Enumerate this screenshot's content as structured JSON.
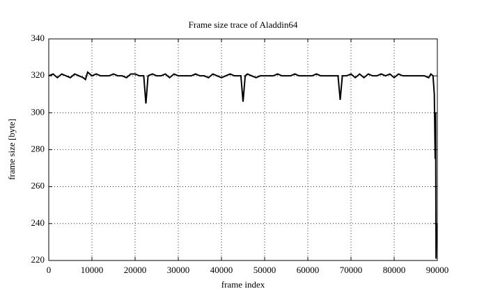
{
  "chart_data": {
    "type": "line",
    "title": "Frame size trace of Aladdin64",
    "x_label": "frame index",
    "y_label": "frame size [byte]",
    "color": "#000000",
    "grid": true,
    "xlim": [
      0,
      90000
    ],
    "ylim": [
      220,
      340
    ],
    "xticks": [
      0,
      10000,
      20000,
      30000,
      40000,
      50000,
      60000,
      70000,
      80000,
      90000
    ],
    "yticks": [
      220,
      240,
      260,
      280,
      300,
      320,
      340
    ],
    "x": [
      0,
      1000,
      2000,
      3000,
      4000,
      5000,
      6000,
      7000,
      8000,
      8500,
      9000,
      10000,
      11000,
      12000,
      13000,
      14000,
      15000,
      16000,
      17000,
      18000,
      19000,
      20000,
      21000,
      22000,
      22500,
      23000,
      24000,
      25000,
      26000,
      27000,
      28000,
      29000,
      30000,
      31000,
      32000,
      33000,
      34000,
      35000,
      36000,
      37000,
      38000,
      39000,
      40000,
      41000,
      42000,
      43000,
      44000,
      44500,
      45000,
      45500,
      46000,
      47000,
      48000,
      49000,
      50000,
      51000,
      52000,
      53000,
      54000,
      55000,
      56000,
      57000,
      58000,
      59000,
      60000,
      61000,
      62000,
      63000,
      64000,
      65000,
      66000,
      67000,
      67500,
      68000,
      69000,
      70000,
      71000,
      72000,
      73000,
      74000,
      75000,
      76000,
      77000,
      78000,
      79000,
      80000,
      81000,
      82000,
      83000,
      84000,
      85000,
      86000,
      87000,
      88000,
      88500,
      89000,
      89300,
      89500,
      89600,
      89700,
      89800
    ],
    "values": [
      320,
      321,
      319,
      321,
      320,
      319,
      321,
      320,
      319,
      318,
      322,
      320,
      321,
      320,
      320,
      320,
      321,
      320,
      320,
      319,
      321,
      321,
      320,
      320,
      305,
      320,
      321,
      320,
      320,
      321,
      319,
      321,
      320,
      320,
      320,
      320,
      321,
      320,
      320,
      319,
      321,
      320,
      319,
      320,
      321,
      320,
      320,
      320,
      306,
      320,
      321,
      320,
      319,
      320,
      320,
      320,
      320,
      321,
      320,
      320,
      320,
      321,
      320,
      320,
      320,
      320,
      321,
      320,
      320,
      320,
      320,
      320,
      307,
      320,
      320,
      321,
      319,
      321,
      319,
      321,
      320,
      320,
      321,
      320,
      321,
      319,
      321,
      320,
      320,
      320,
      320,
      320,
      320,
      319,
      321,
      320,
      310,
      275,
      300,
      221,
      240
    ]
  }
}
